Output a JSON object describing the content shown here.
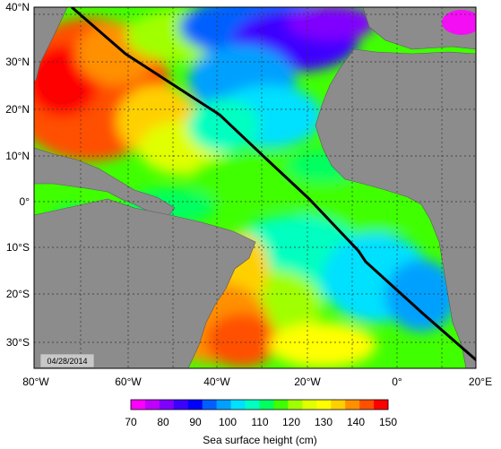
{
  "map": {
    "date_stamp": "04/28/2014",
    "lat_labels": [
      "40°N",
      "30°N",
      "20°N",
      "10°N",
      "0°",
      "10°S",
      "20°S",
      "30°S"
    ],
    "lon_labels": [
      "80°W",
      "60°W",
      "40°W",
      "20°W",
      "0°",
      "20°E"
    ],
    "track_line_color": "#000000",
    "land_color": "#8c8c8c",
    "grid_style": "dotted"
  },
  "colorbar": {
    "title": "Sea surface height (cm)",
    "ticks": [
      "70",
      "80",
      "90",
      "100",
      "110",
      "120",
      "130",
      "140",
      "150"
    ],
    "colors": [
      "#ff00ff",
      "#c000ff",
      "#8000ff",
      "#3c00ff",
      "#0000ff",
      "#0060ff",
      "#00a0ff",
      "#00e0ff",
      "#00ffc0",
      "#00ff60",
      "#40ff00",
      "#a0ff00",
      "#e0ff00",
      "#ffff00",
      "#ffd000",
      "#ff9000",
      "#ff5000",
      "#ff0000"
    ]
  }
}
